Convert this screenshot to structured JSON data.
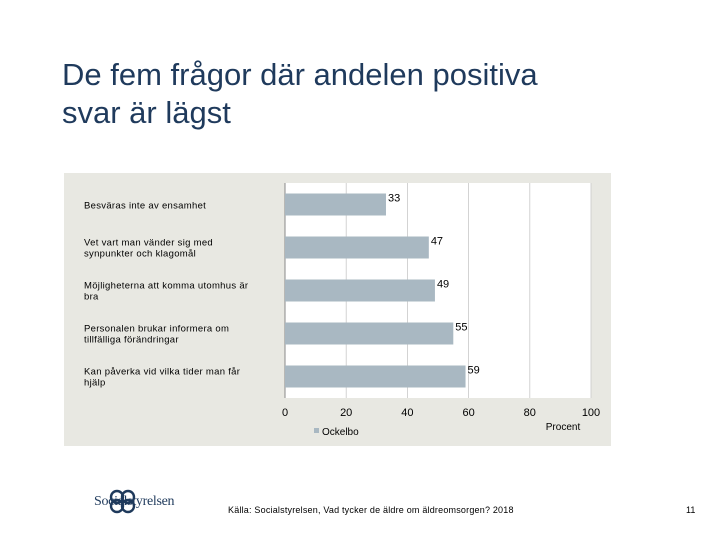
{
  "slide": {
    "title_line1": "De fem frågor där andelen positiva",
    "title_line2": "svar är lägst",
    "source": "Källa: Socialstyrelsen, Vad tycker de äldre om äldreomsorgen? 2018",
    "page_number": "11",
    "logo_text": "Socialstyrelsen"
  },
  "chart_data": {
    "type": "bar",
    "orientation": "horizontal",
    "categories": [
      [
        "Besväras inte av ensamhet"
      ],
      [
        "Vet vart man vänder sig med",
        "synpunkter och klagomål"
      ],
      [
        "Möjligheterna att komma utomhus är",
        "bra"
      ],
      [
        "Personalen brukar informera om",
        "tillfälliga förändringar"
      ],
      [
        "Kan påverka vid vilka tider man får",
        "hjälp"
      ]
    ],
    "series": [
      {
        "name": "Ockelbo",
        "values": [
          33,
          47,
          49,
          55,
          59
        ],
        "color": "#a9b8c2"
      }
    ],
    "xlim": [
      0,
      100
    ],
    "xticks": [
      0,
      20,
      40,
      60,
      80,
      100
    ],
    "xlabel": "Procent",
    "grid": "vertical",
    "legend": "bottom-left",
    "panel_color": "#e8e8e2"
  }
}
